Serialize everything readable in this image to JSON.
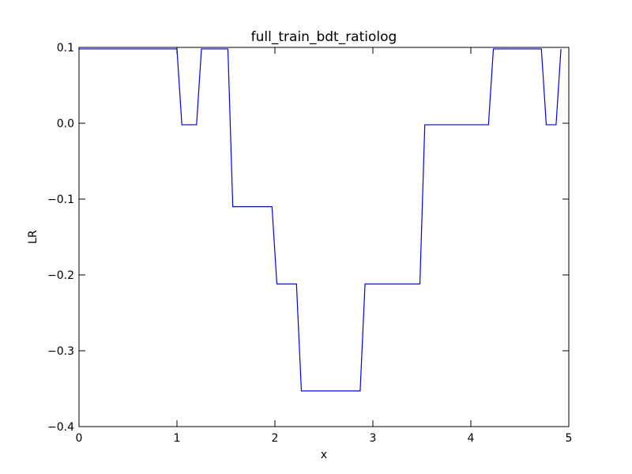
{
  "chart_data": {
    "type": "line",
    "title": "full_train_bdt_ratiolog",
    "xlabel": "x",
    "ylabel": "LR",
    "xlim": [
      0,
      5
    ],
    "ylim": [
      -0.4,
      0.1
    ],
    "xticks": [
      {
        "value": 0,
        "label": "0"
      },
      {
        "value": 1,
        "label": "1"
      },
      {
        "value": 2,
        "label": "2"
      },
      {
        "value": 3,
        "label": "3"
      },
      {
        "value": 4,
        "label": "4"
      },
      {
        "value": 5,
        "label": "5"
      }
    ],
    "yticks": [
      {
        "value": 0.1,
        "label": "0.1"
      },
      {
        "value": 0.0,
        "label": "0.0"
      },
      {
        "value": -0.1,
        "label": "−0.1"
      },
      {
        "value": -0.2,
        "label": "−0.2"
      },
      {
        "value": -0.3,
        "label": "−0.3"
      },
      {
        "value": -0.4,
        "label": "−0.4"
      }
    ],
    "grid": false,
    "series": [
      {
        "color": "#0000ff",
        "x": [
          0.0,
          1.0,
          1.05,
          1.2,
          1.25,
          1.52,
          1.57,
          1.97,
          2.02,
          2.22,
          2.27,
          2.87,
          2.92,
          3.48,
          3.53,
          4.18,
          4.23,
          4.72,
          4.77,
          4.87,
          4.92
        ],
        "y": [
          0.098,
          0.098,
          -0.002,
          -0.002,
          0.098,
          0.098,
          -0.11,
          -0.11,
          -0.212,
          -0.212,
          -0.353,
          -0.353,
          -0.212,
          -0.212,
          -0.002,
          -0.002,
          0.098,
          0.098,
          -0.002,
          -0.002,
          0.098
        ]
      }
    ]
  }
}
